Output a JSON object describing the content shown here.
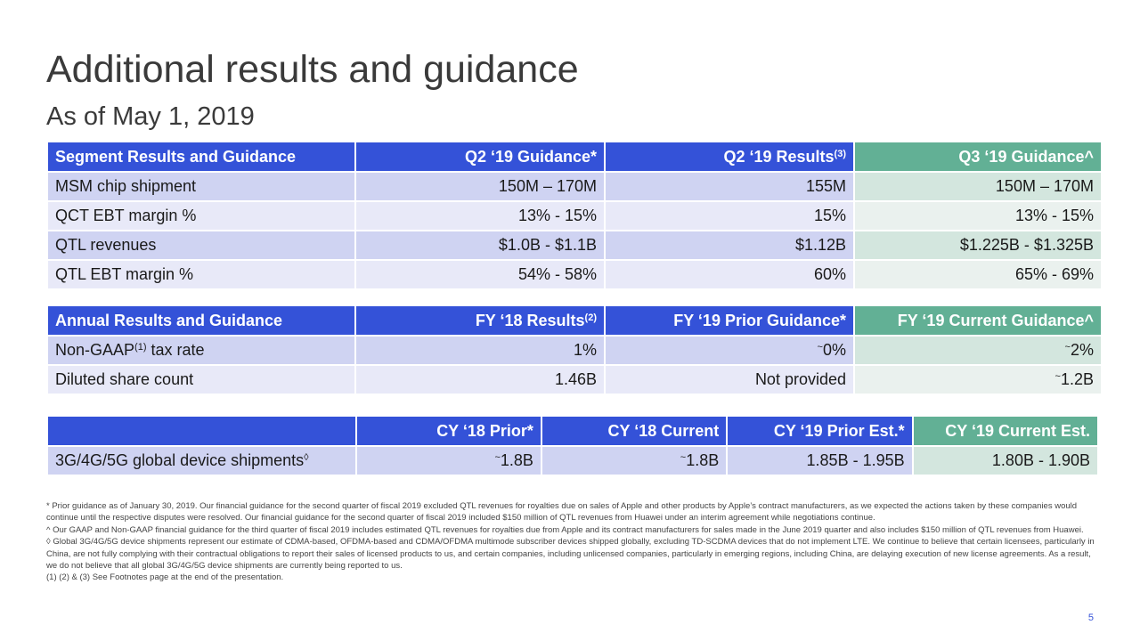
{
  "title": "Additional results and guidance",
  "subtitle": "As of May 1, 2019",
  "segment": {
    "headers": [
      "Segment Results and Guidance",
      "Q2 ‘19 Guidance*",
      "Q2 ‘19 Results",
      "Q3 ‘19 Guidance^"
    ],
    "results_sup": "(3)",
    "rows": [
      [
        "MSM chip shipment",
        "150M – 170M",
        "155M",
        "150M – 170M"
      ],
      [
        "QCT EBT margin %",
        "13% - 15%",
        "15%",
        "13% - 15%"
      ],
      [
        "QTL revenues",
        "$1.0B - $1.1B",
        "$1.12B",
        "$1.225B - $1.325B"
      ],
      [
        "QTL EBT margin %",
        "54% - 58%",
        "60%",
        "65% - 69%"
      ]
    ]
  },
  "annual": {
    "headers": [
      "Annual Results and Guidance",
      "FY ‘18 Results",
      "FY ‘19 Prior Guidance*",
      "FY ‘19 Current Guidance^"
    ],
    "results_sup": "(2)",
    "row1": {
      "label_pre": "Non-GAAP",
      "label_sup": "(1)",
      "label_post": " tax rate",
      "v1": "1%",
      "tilde": "~",
      "v2": "0%",
      "v3": "2%"
    },
    "row2": {
      "label": "Diluted share count",
      "v1": "1.46B",
      "v2": "Not provided",
      "tilde": "~",
      "v3": "1.2B"
    }
  },
  "devices": {
    "headers": [
      "",
      "CY ‘18 Prior*",
      "CY ‘18 Current",
      "CY ‘19 Prior Est.*",
      "CY ‘19 Current Est."
    ],
    "row": {
      "label": "3G/4G/5G global device shipments",
      "label_sup": "◊",
      "tilde": "~",
      "v1": "1.8B",
      "v2": "1.8B",
      "v3": "1.85B - 1.95B",
      "v4": "1.80B - 1.90B"
    }
  },
  "footnotes": [
    "* Prior guidance as of January 30, 2019. Our financial guidance for the second quarter of fiscal 2019 excluded QTL revenues for royalties due on sales of Apple and other products by Apple’s contract manufacturers, as we expected the actions taken by these companies would continue until the respective disputes were resolved. Our financial guidance for the second quarter of fiscal 2019 included $150 million of QTL revenues from Huawei under an interim agreement while negotiations continue.",
    "^ Our GAAP and Non-GAAP financial guidance for the third quarter of fiscal 2019 includes estimated QTL revenues for royalties due from Apple and its contract manufacturers for sales made in the June 2019 quarter and also includes $150 million of QTL revenues from Huawei.",
    "◊ Global 3G/4G/5G device shipments represent our estimate of CDMA-based, OFDMA-based and CDMA/OFDMA multimode subscriber devices shipped globally, excluding TD-SCDMA devices that do not implement LTE. We continue to believe that certain licensees, particularly in China, are not fully complying with their contractual obligations to report their sales of licensed products to us, and certain companies, including unlicensed companies, particularly in emerging regions, including China, are delaying execution of new license agreements. As a result, we do not believe that all global 3G/4G/5G device shipments are currently being reported to us.",
    "(1) (2) & (3) See Footnotes page at the end of the presentation."
  ],
  "page_number": "5",
  "colors": {
    "header_blue": "#3452d8",
    "header_green": "#62b095",
    "row_blue_dark": "#cfd3f2",
    "row_blue_light": "#e8e9f8",
    "row_green_dark": "#d3e6de",
    "row_green_light": "#eaf1ee"
  }
}
